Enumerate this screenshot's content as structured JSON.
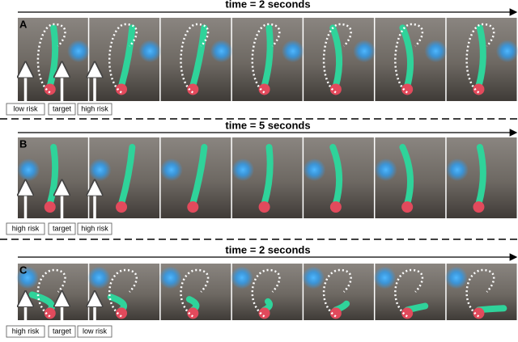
{
  "panels": [
    {
      "letter": "A",
      "time": "time = 2 seconds",
      "labels": [
        "low risk",
        "target",
        "high risk"
      ]
    },
    {
      "letter": "B",
      "time": "time = 5 seconds",
      "labels": [
        "high risk",
        "target",
        "high risk"
      ]
    },
    {
      "letter": "C",
      "time": "time = 2 seconds",
      "labels": [
        "high risk",
        "target",
        "low risk"
      ]
    }
  ]
}
